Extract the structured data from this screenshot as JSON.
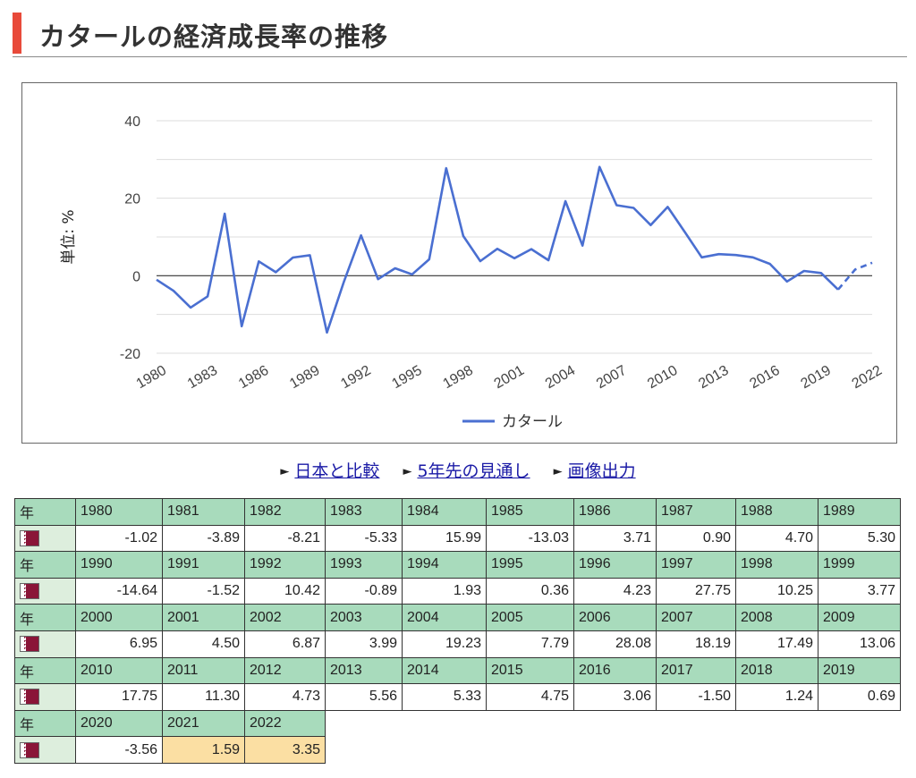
{
  "page": {
    "title": "カタールの経済成長率の推移"
  },
  "links": [
    {
      "label": "日本と比較"
    },
    {
      "label": "5年先の見通し"
    },
    {
      "label": "画像出力"
    }
  ],
  "colors": {
    "accent_bar": "#e84a3a",
    "series_line": "#4a6fd1",
    "year_header_bg": "#a8dbbc",
    "flag_cell_bg": "#ddeedd",
    "estimate_bg": "#fbdfa3",
    "link": "#1a1aa6"
  },
  "table": {
    "year_header_label": "年",
    "flag_icon": "qatar-flag-icon"
  },
  "chart_data": {
    "type": "line",
    "title": "",
    "xlabel": "",
    "ylabel": "単位: %",
    "ylim": [
      -20,
      40
    ],
    "yticks": [
      -20,
      0,
      20,
      40
    ],
    "grid": true,
    "legend_position": "bottom",
    "x_tick_labels": [
      "1980",
      "1983",
      "1986",
      "1989",
      "1992",
      "1995",
      "1998",
      "2001",
      "2004",
      "2007",
      "2010",
      "2013",
      "2016",
      "2019",
      "2022"
    ],
    "estimate_from": 2021,
    "x": [
      1980,
      1981,
      1982,
      1983,
      1984,
      1985,
      1986,
      1987,
      1988,
      1989,
      1990,
      1991,
      1992,
      1993,
      1994,
      1995,
      1996,
      1997,
      1998,
      1999,
      2000,
      2001,
      2002,
      2003,
      2004,
      2005,
      2006,
      2007,
      2008,
      2009,
      2010,
      2011,
      2012,
      2013,
      2014,
      2015,
      2016,
      2017,
      2018,
      2019,
      2020,
      2021,
      2022
    ],
    "series": [
      {
        "name": "カタール",
        "values": [
          -1.02,
          -3.89,
          -8.21,
          -5.33,
          15.99,
          -13.03,
          3.71,
          0.9,
          4.7,
          5.3,
          -14.64,
          -1.52,
          10.42,
          -0.89,
          1.93,
          0.36,
          4.23,
          27.75,
          10.25,
          3.77,
          6.95,
          4.5,
          6.87,
          3.99,
          19.23,
          7.79,
          28.08,
          18.19,
          17.49,
          13.06,
          17.75,
          11.3,
          4.73,
          5.56,
          5.33,
          4.75,
          3.06,
          -1.5,
          1.24,
          0.69,
          -3.56,
          1.59,
          3.35
        ],
        "display": [
          "-1.02",
          "-3.89",
          "-8.21",
          "-5.33",
          "15.99",
          "-13.03",
          "3.71",
          "0.90",
          "4.70",
          "5.30",
          "-14.64",
          "-1.52",
          "10.42",
          "-0.89",
          "1.93",
          "0.36",
          "4.23",
          "27.75",
          "10.25",
          "3.77",
          "6.95",
          "4.50",
          "6.87",
          "3.99",
          "19.23",
          "7.79",
          "28.08",
          "18.19",
          "17.49",
          "13.06",
          "17.75",
          "11.30",
          "4.73",
          "5.56",
          "5.33",
          "4.75",
          "3.06",
          "-1.50",
          "1.24",
          "0.69",
          "-3.56",
          "1.59",
          "3.35"
        ]
      }
    ]
  }
}
